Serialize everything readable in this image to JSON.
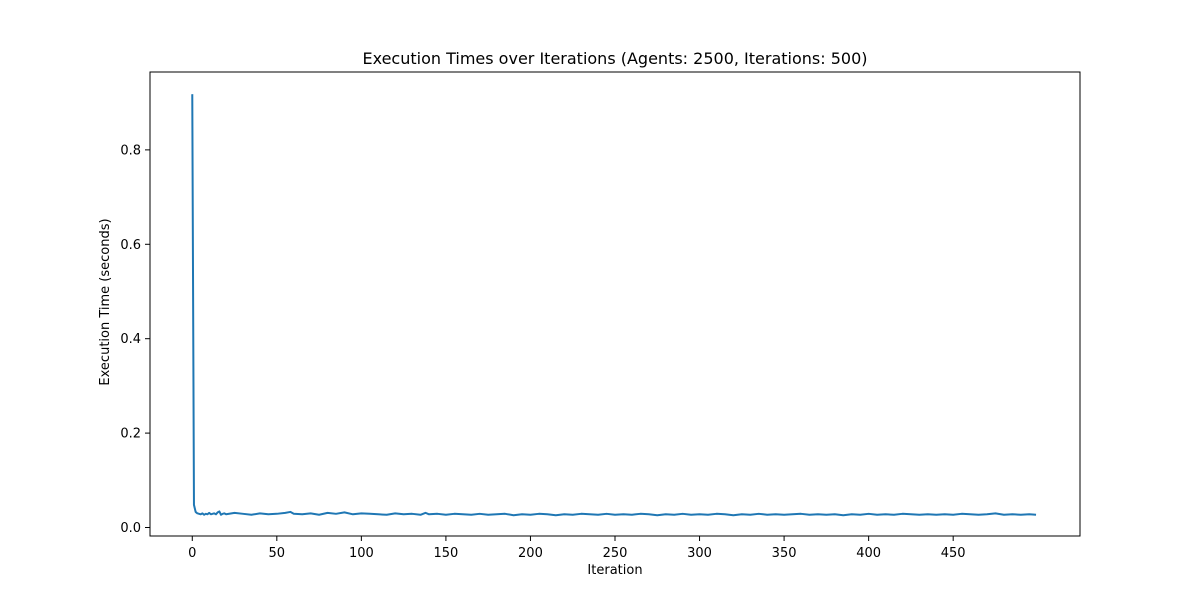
{
  "chart_data": {
    "type": "line",
    "title": "Execution Times over Iterations (Agents: 2500, Iterations: 500)",
    "xlabel": "Iteration",
    "ylabel": "Execution Time (seconds)",
    "xlim": [
      -25,
      525
    ],
    "ylim": [
      -0.018,
      0.965
    ],
    "xticks": [
      0,
      50,
      100,
      150,
      200,
      250,
      300,
      350,
      400,
      450
    ],
    "yticks": [
      0.0,
      0.2,
      0.4,
      0.6,
      0.8
    ],
    "ytick_labels": [
      "0.0",
      "0.2",
      "0.4",
      "0.6",
      "0.8"
    ],
    "grid": false,
    "series": [
      {
        "color": "#1f77b4",
        "x": [
          0,
          1,
          2,
          3,
          4,
          5,
          6,
          7,
          8,
          9,
          10,
          11,
          12,
          13,
          14,
          15,
          16,
          17,
          18,
          19,
          20,
          25,
          30,
          35,
          40,
          45,
          50,
          55,
          58,
          60,
          65,
          70,
          75,
          80,
          85,
          90,
          95,
          100,
          105,
          110,
          115,
          120,
          125,
          130,
          135,
          138,
          140,
          145,
          150,
          155,
          160,
          165,
          170,
          175,
          180,
          185,
          190,
          195,
          200,
          205,
          210,
          215,
          220,
          225,
          230,
          235,
          240,
          245,
          250,
          255,
          260,
          265,
          270,
          275,
          280,
          285,
          290,
          295,
          300,
          305,
          310,
          315,
          320,
          325,
          330,
          335,
          340,
          345,
          350,
          355,
          360,
          365,
          370,
          375,
          380,
          385,
          390,
          395,
          400,
          405,
          410,
          415,
          420,
          425,
          430,
          435,
          440,
          445,
          450,
          455,
          460,
          465,
          470,
          475,
          480,
          485,
          490,
          495,
          499
        ],
        "y": [
          0.918,
          0.048,
          0.033,
          0.03,
          0.029,
          0.028,
          0.03,
          0.027,
          0.029,
          0.028,
          0.031,
          0.028,
          0.029,
          0.03,
          0.028,
          0.032,
          0.034,
          0.027,
          0.029,
          0.03,
          0.028,
          0.031,
          0.029,
          0.027,
          0.03,
          0.028,
          0.029,
          0.031,
          0.033,
          0.029,
          0.028,
          0.03,
          0.027,
          0.031,
          0.029,
          0.032,
          0.028,
          0.03,
          0.029,
          0.028,
          0.027,
          0.03,
          0.028,
          0.029,
          0.027,
          0.031,
          0.028,
          0.029,
          0.027,
          0.029,
          0.028,
          0.027,
          0.029,
          0.027,
          0.028,
          0.029,
          0.026,
          0.028,
          0.027,
          0.029,
          0.028,
          0.026,
          0.028,
          0.027,
          0.029,
          0.028,
          0.027,
          0.029,
          0.027,
          0.028,
          0.027,
          0.029,
          0.028,
          0.026,
          0.028,
          0.027,
          0.029,
          0.027,
          0.028,
          0.027,
          0.029,
          0.028,
          0.026,
          0.028,
          0.027,
          0.029,
          0.027,
          0.028,
          0.027,
          0.028,
          0.029,
          0.027,
          0.028,
          0.027,
          0.028,
          0.026,
          0.028,
          0.027,
          0.029,
          0.027,
          0.028,
          0.027,
          0.029,
          0.028,
          0.027,
          0.028,
          0.027,
          0.028,
          0.027,
          0.029,
          0.028,
          0.027,
          0.028,
          0.03,
          0.027,
          0.028,
          0.027,
          0.028,
          0.027
        ]
      }
    ]
  }
}
